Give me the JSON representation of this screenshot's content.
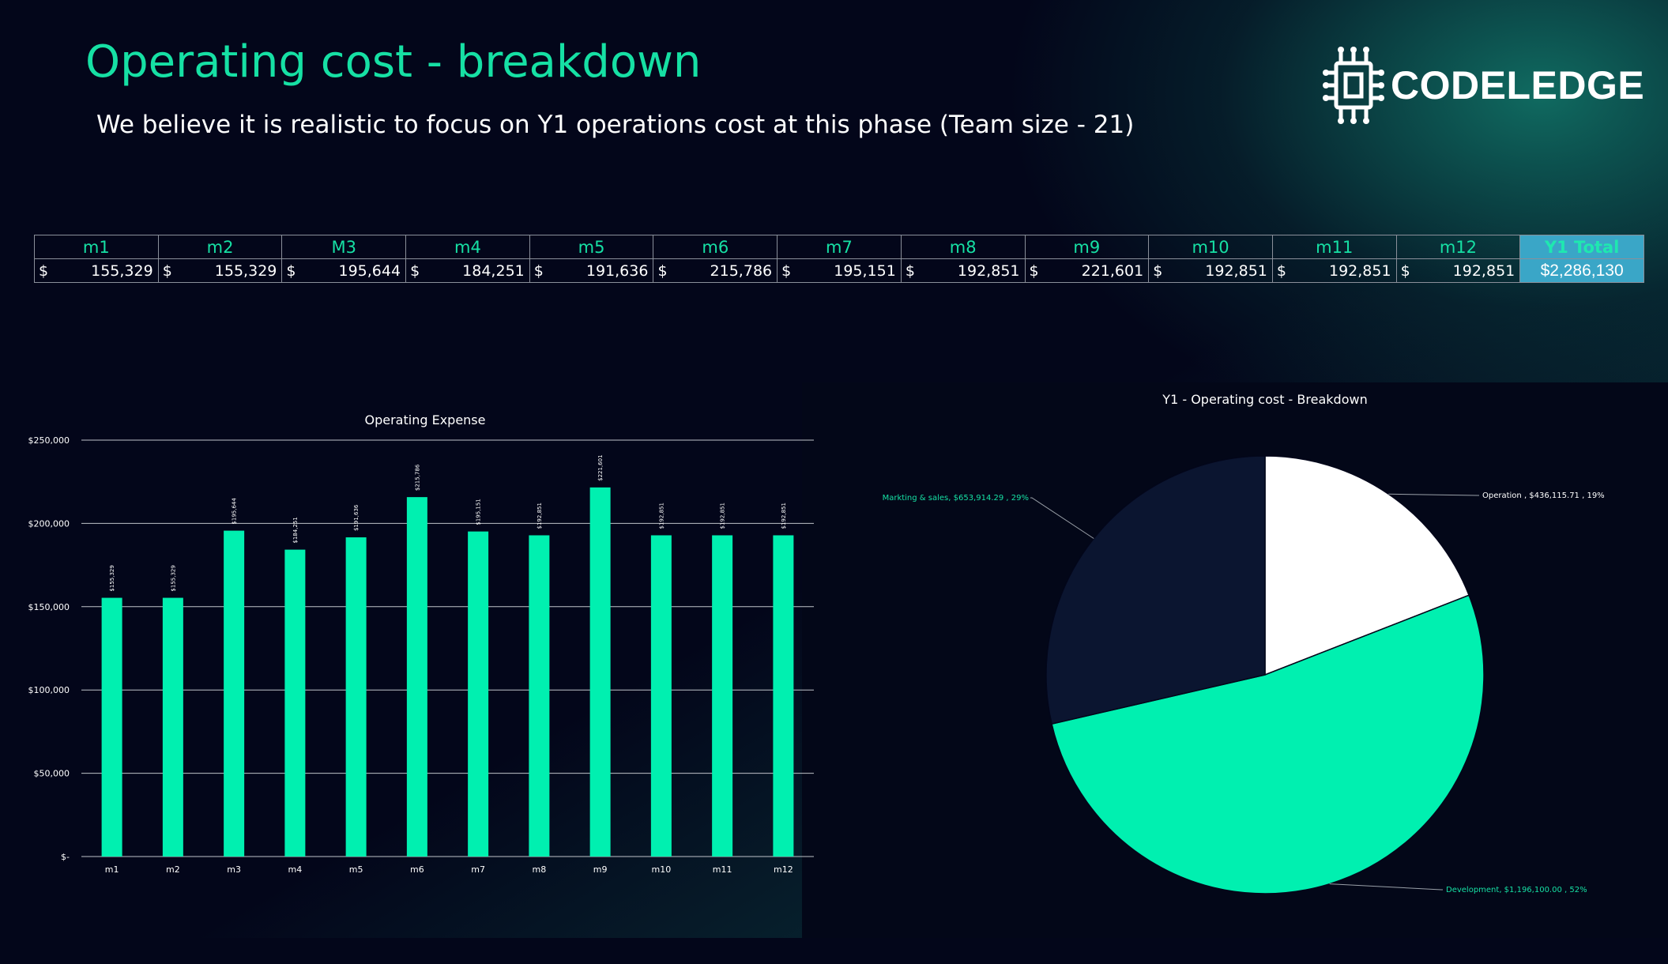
{
  "header": {
    "title": "Operating cost - breakdown",
    "subtitle": "We believe it is realistic to focus on Y1 operations cost at this phase (Team size - 21)"
  },
  "logo": {
    "text": "CODELEDGE",
    "icon": "chip-icon"
  },
  "table": {
    "currency": "$",
    "headers": [
      "m1",
      "m2",
      "M3",
      "m4",
      "m5",
      "m6",
      "m7",
      "m8",
      "m9",
      "m10",
      "m11",
      "m12"
    ],
    "values": [
      "155,329",
      "155,329",
      "195,644",
      "184,251",
      "191,636",
      "215,786",
      "195,151",
      "192,851",
      "221,601",
      "192,851",
      "192,851",
      "192,851"
    ],
    "total_header": "Y1 Total",
    "total_value": "$2,286,130"
  },
  "colors": {
    "accent": "#16e0a4",
    "bar": "#00f0b0",
    "total_bg": "#3aa6c7",
    "pie_dark": "#0b1530"
  },
  "chart_data": [
    {
      "type": "bar",
      "title": "Operating Expense",
      "categories": [
        "m1",
        "m2",
        "m3",
        "m4",
        "m5",
        "m6",
        "m7",
        "m8",
        "m9",
        "m10",
        "m11",
        "m12"
      ],
      "values": [
        155329,
        155329,
        195644,
        184251,
        191636,
        215786,
        195151,
        192851,
        221601,
        192851,
        192851,
        192851
      ],
      "data_labels": [
        "$155,329",
        "$155,329",
        "$195,644",
        "$184,251",
        "$191,636",
        "$215,786",
        "$195,151",
        "$192,851",
        "$221,601",
        "$192,851",
        "$192,851",
        "$192,851"
      ],
      "ylim": [
        0,
        250000
      ],
      "yticks": [
        0,
        50000,
        100000,
        150000,
        200000,
        250000
      ],
      "ytick_labels": [
        "$-",
        "$50,000",
        "$100,000",
        "$150,000",
        "$200,000",
        "$250,000"
      ],
      "grid": true
    },
    {
      "type": "pie",
      "title": "Y1 - Operating cost - Breakdown",
      "slices": [
        {
          "name": "Operation",
          "value": 436115.71,
          "percent": 19,
          "label": "Operation , $436,115.71 , 19%",
          "color": "#ffffff"
        },
        {
          "name": "Development",
          "value": 1196100.0,
          "percent": 52,
          "label": "Development, $1,196,100.00 , 52%",
          "color": "#00f0b0"
        },
        {
          "name": "Markting & sales",
          "value": 653914.29,
          "percent": 29,
          "label": "Markting & sales, $653,914.29 , 29%",
          "color": "#0b1530"
        }
      ]
    }
  ]
}
